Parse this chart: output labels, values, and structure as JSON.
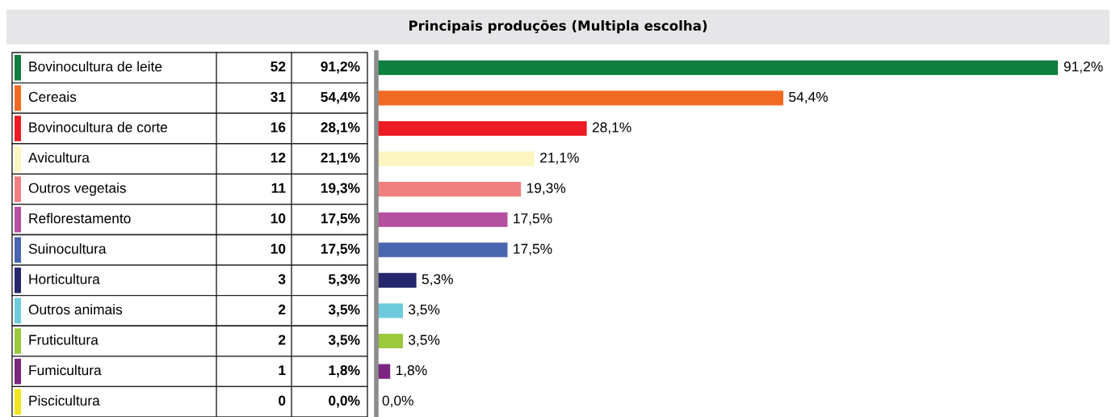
{
  "chart_data": {
    "type": "bar",
    "orientation": "horizontal",
    "title": "Principais produções (Multipla escolha)",
    "categories": [
      "Bovinocultura de leite",
      "Cereais",
      "Bovinocultura de corte",
      "Avicultura",
      "Outros vegetais",
      "Reflorestamento",
      "Suinocultura",
      "Horticultura",
      "Outros animais",
      "Fruticultura",
      "Fumicultura",
      "Piscicultura"
    ],
    "values": [
      91.2,
      54.4,
      28.1,
      21.1,
      19.3,
      17.5,
      17.5,
      5.3,
      3.5,
      3.5,
      1.8,
      0.0
    ],
    "value_labels": [
      "91,2%",
      "54,4%",
      "28,1%",
      "21,1%",
      "19,3%",
      "17,5%",
      "17,5%",
      "5,3%",
      "3,5%",
      "3,5%",
      "1,8%",
      "0,0%"
    ],
    "colors": [
      "#0e7f3e",
      "#f26a22",
      "#ed1c24",
      "#fbf5c0",
      "#f08080",
      "#b54f9f",
      "#4a65b0",
      "#25276d",
      "#6dcbdc",
      "#9ac93c",
      "#7a2580",
      "#f1e51c"
    ],
    "annotations": [
      "52",
      "31",
      "16",
      "12",
      "11",
      "10",
      "10",
      "3",
      "2",
      "2",
      "1",
      "0"
    ]
  }
}
